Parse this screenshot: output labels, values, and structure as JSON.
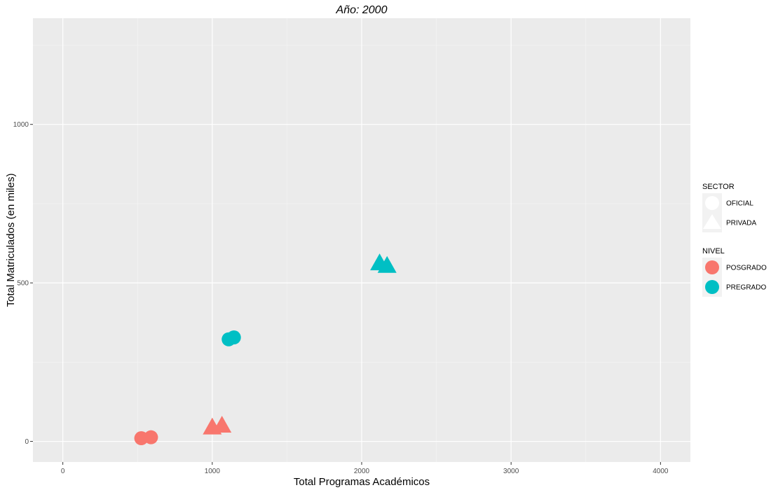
{
  "chart_data": {
    "type": "scatter",
    "title": "Año: 2000",
    "xlabel": "Total Programas Académicos",
    "ylabel": "Total Matriculados (en miles)",
    "xlim": [
      -200,
      4200
    ],
    "ylim": [
      -65,
      1335
    ],
    "x_ticks": [
      0,
      1000,
      2000,
      3000,
      4000
    ],
    "y_ticks": [
      0,
      500,
      1000
    ],
    "grid": true,
    "background": "#ebebeb",
    "legend_position": "right",
    "legends": [
      {
        "title": "SECTOR",
        "kind": "shape",
        "entries": [
          {
            "label": "OFICIAL",
            "shape": "circle"
          },
          {
            "label": "PRIVADA",
            "shape": "triangle"
          }
        ]
      },
      {
        "title": "NIVEL",
        "kind": "color",
        "entries": [
          {
            "label": "POSGRADO",
            "color": "#f8766d"
          },
          {
            "label": "PREGRADO",
            "color": "#00bfc4"
          }
        ]
      }
    ],
    "points": [
      {
        "x": 525,
        "y": 10,
        "sector": "OFICIAL",
        "nivel": "POSGRADO"
      },
      {
        "x": 590,
        "y": 13,
        "sector": "OFICIAL",
        "nivel": "POSGRADO"
      },
      {
        "x": 1000,
        "y": 42,
        "sector": "PRIVADA",
        "nivel": "POSGRADO"
      },
      {
        "x": 1065,
        "y": 48,
        "sector": "PRIVADA",
        "nivel": "POSGRADO"
      },
      {
        "x": 1110,
        "y": 322,
        "sector": "OFICIAL",
        "nivel": "PREGRADO"
      },
      {
        "x": 1145,
        "y": 328,
        "sector": "OFICIAL",
        "nivel": "PREGRADO"
      },
      {
        "x": 2120,
        "y": 560,
        "sector": "PRIVADA",
        "nivel": "PREGRADO"
      },
      {
        "x": 2170,
        "y": 552,
        "sector": "PRIVADA",
        "nivel": "PREGRADO"
      }
    ]
  }
}
